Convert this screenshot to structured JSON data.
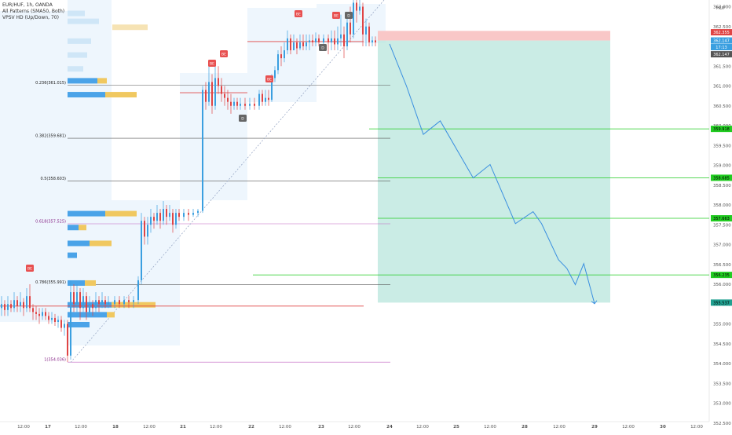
{
  "header": {
    "symbol_line": "EUR/HUF, 1h, OANDA",
    "indicator_1": "All Patterns (SMA50, Both)",
    "indicator_2": "VPSV HD (Up/Down, 70)"
  },
  "currency": "HUF",
  "colors": {
    "up": "#3a9fe0",
    "down": "#e04444",
    "volume_profile_blue": "#4aa3e8",
    "volume_profile_yellow": "#f0c860",
    "target_zone": "#b8e6dc",
    "stop_zone": "#f9c7c7",
    "green_level": "#22cc22",
    "projection": "#3a8fe0"
  },
  "chart_data": {
    "type": "line",
    "symbol": "EUR/HUF",
    "timeframe": "1h",
    "ylim": [
      352.3,
      363.35
    ],
    "price_ticks": [
      "363.000",
      "362.500",
      "362.000",
      "361.500",
      "361.000",
      "360.500",
      "360.000",
      "359.500",
      "359.000",
      "358.500",
      "358.000",
      "357.500",
      "357.000",
      "356.500",
      "356.000",
      "355.500",
      "355.000",
      "354.500",
      "354.000",
      "353.500",
      "353.000",
      "352.500"
    ],
    "time_labels": [
      "12:00",
      "17",
      "12:00",
      "18",
      "12:00",
      "21",
      "12:00",
      "22",
      "12:00",
      "23",
      "12:00",
      "24",
      "12:00",
      "25",
      "12:00",
      "28",
      "12:00",
      "29",
      "12:00",
      "30",
      "12:00"
    ],
    "fibonacci": [
      {
        "label": "0.236(361.015)",
        "price": 361.015
      },
      {
        "label": "0.382(359.681)",
        "price": 359.681
      },
      {
        "label": "0.5(358.603)",
        "price": 358.603
      },
      {
        "label": "0.618(357.525)",
        "price": 357.525
      },
      {
        "label": "0.786(355.991)",
        "price": 355.991
      },
      {
        "label": "1(354.036)",
        "price": 354.036
      }
    ],
    "target_levels": [
      {
        "label": "359.918",
        "price": 359.918
      },
      {
        "label": "358.685",
        "price": 358.685
      },
      {
        "label": "357.663",
        "price": 357.663
      },
      {
        "label": "356.235",
        "price": 356.235
      },
      {
        "label": "355.537",
        "price": 355.537
      }
    ],
    "current_labels": [
      {
        "label": "362.355",
        "price": 362.355,
        "color": "#e04444"
      },
      {
        "label": "362.147",
        "price": 362.147,
        "color": "#3a9fe0"
      },
      {
        "label": "17:13",
        "price": 361.98,
        "color": "#3a9fe0"
      },
      {
        "label": "362.147",
        "price": 361.8,
        "color": "#555555"
      }
    ],
    "stop_zone": [
      362.147,
      362.39
    ],
    "target_zone": [
      355.537,
      362.147
    ],
    "projection_path": [
      {
        "time": "24 00:00",
        "price": 362.06
      },
      {
        "time": "24 06:00",
        "price": 361.0
      },
      {
        "time": "24 12:00",
        "price": 359.78
      },
      {
        "time": "24 18:00",
        "price": 360.12
      },
      {
        "time": "25 06:00",
        "price": 358.68
      },
      {
        "time": "25 12:00",
        "price": 359.02
      },
      {
        "time": "25 21:00",
        "price": 357.53
      },
      {
        "time": "28 03:00",
        "price": 357.83
      },
      {
        "time": "28 06:00",
        "price": 357.53
      },
      {
        "time": "28 12:00",
        "price": 356.62
      },
      {
        "time": "28 15:00",
        "price": 356.4
      },
      {
        "time": "28 18:00",
        "price": 355.99
      },
      {
        "time": "28 21:00",
        "price": 356.52
      },
      {
        "time": "29 00:00",
        "price": 355.51
      }
    ],
    "pattern_badges": [
      {
        "text": "BE",
        "kind": "bear"
      },
      {
        "text": "BE",
        "kind": "bear"
      },
      {
        "text": "BE",
        "kind": "bear"
      },
      {
        "text": "BE",
        "kind": "bear"
      },
      {
        "text": "BE",
        "kind": "bear"
      },
      {
        "text": "BE",
        "kind": "bear"
      },
      {
        "text": "D",
        "kind": "doji"
      },
      {
        "text": "D",
        "kind": "doji"
      },
      {
        "text": "D",
        "kind": "doji"
      }
    ]
  }
}
